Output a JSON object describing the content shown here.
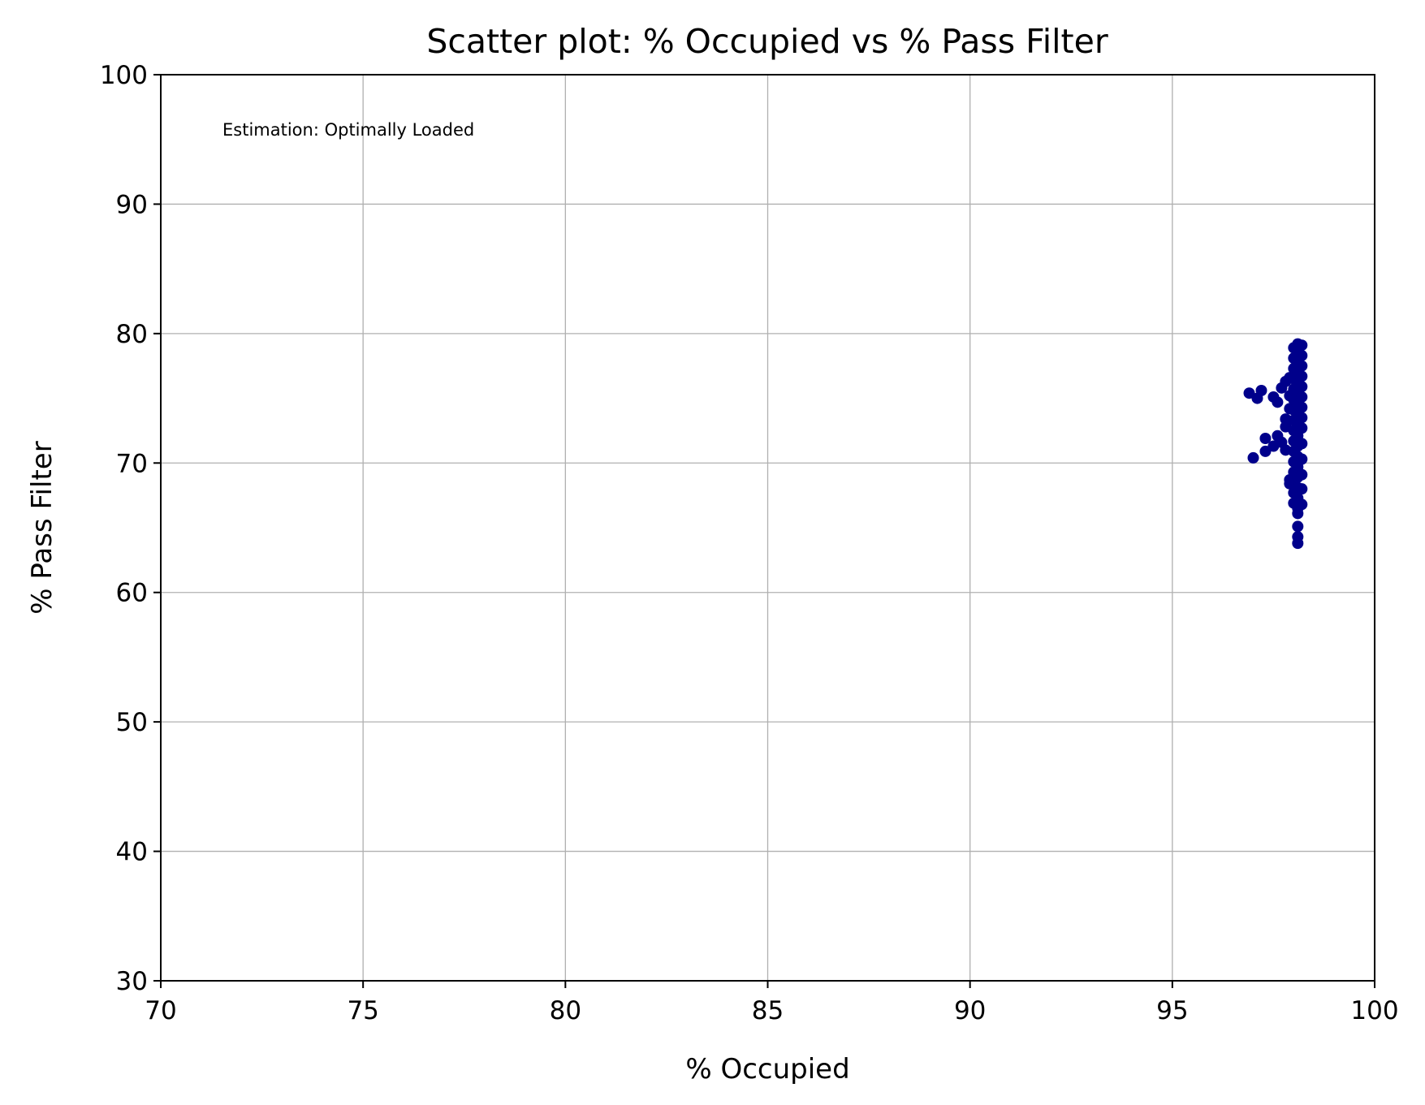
{
  "chart_data": {
    "type": "scatter",
    "title": "Scatter plot: % Occupied vs % Pass Filter",
    "xlabel": "% Occupied",
    "ylabel": "% Pass Filter",
    "xlim": [
      70,
      100
    ],
    "ylim": [
      30,
      100
    ],
    "xticks": [
      70,
      75,
      80,
      85,
      90,
      95,
      100
    ],
    "yticks": [
      30,
      40,
      50,
      60,
      70,
      80,
      90,
      100
    ],
    "grid": true,
    "annotation": "Estimation: Optimally Loaded",
    "point_color": "#00008b",
    "points": [
      [
        96.9,
        75.4
      ],
      [
        97.0,
        70.4
      ],
      [
        97.1,
        75.0
      ],
      [
        97.2,
        75.6
      ],
      [
        97.3,
        71.9
      ],
      [
        97.3,
        70.9
      ],
      [
        97.5,
        75.1
      ],
      [
        97.5,
        71.3
      ],
      [
        97.6,
        72.1
      ],
      [
        97.6,
        74.7
      ],
      [
        97.7,
        75.8
      ],
      [
        97.7,
        71.6
      ],
      [
        97.8,
        76.3
      ],
      [
        97.8,
        73.4
      ],
      [
        97.8,
        71.0
      ],
      [
        97.8,
        72.8
      ],
      [
        97.9,
        76.6
      ],
      [
        97.9,
        75.2
      ],
      [
        97.9,
        74.2
      ],
      [
        97.9,
        68.7
      ],
      [
        97.9,
        68.4
      ],
      [
        98.0,
        78.9
      ],
      [
        98.0,
        78.1
      ],
      [
        98.0,
        77.3
      ],
      [
        98.0,
        76.5
      ],
      [
        98.0,
        75.7
      ],
      [
        98.0,
        74.9
      ],
      [
        98.0,
        74.1
      ],
      [
        98.0,
        73.3
      ],
      [
        98.0,
        72.5
      ],
      [
        98.0,
        71.7
      ],
      [
        98.0,
        70.9
      ],
      [
        98.0,
        70.1
      ],
      [
        98.0,
        69.3
      ],
      [
        98.0,
        68.5
      ],
      [
        98.0,
        67.7
      ],
      [
        98.0,
        66.9
      ],
      [
        98.1,
        79.2
      ],
      [
        98.1,
        78.5
      ],
      [
        98.1,
        77.7
      ],
      [
        98.1,
        76.9
      ],
      [
        98.1,
        76.1
      ],
      [
        98.1,
        75.3
      ],
      [
        98.1,
        74.5
      ],
      [
        98.1,
        73.7
      ],
      [
        98.1,
        72.9
      ],
      [
        98.1,
        72.1
      ],
      [
        98.1,
        71.3
      ],
      [
        98.1,
        70.5
      ],
      [
        98.1,
        69.7
      ],
      [
        98.1,
        68.9
      ],
      [
        98.1,
        68.1
      ],
      [
        98.1,
        67.3
      ],
      [
        98.1,
        66.5
      ],
      [
        98.1,
        66.1
      ],
      [
        98.1,
        65.1
      ],
      [
        98.1,
        64.3
      ],
      [
        98.1,
        63.8
      ],
      [
        98.2,
        79.1
      ],
      [
        98.2,
        78.3
      ],
      [
        98.2,
        77.5
      ],
      [
        98.2,
        76.7
      ],
      [
        98.2,
        75.9
      ],
      [
        98.2,
        75.1
      ],
      [
        98.2,
        74.3
      ],
      [
        98.2,
        73.5
      ],
      [
        98.2,
        72.7
      ],
      [
        98.2,
        71.5
      ],
      [
        98.2,
        70.3
      ],
      [
        98.2,
        69.1
      ],
      [
        98.2,
        68.0
      ],
      [
        98.2,
        66.8
      ]
    ]
  }
}
